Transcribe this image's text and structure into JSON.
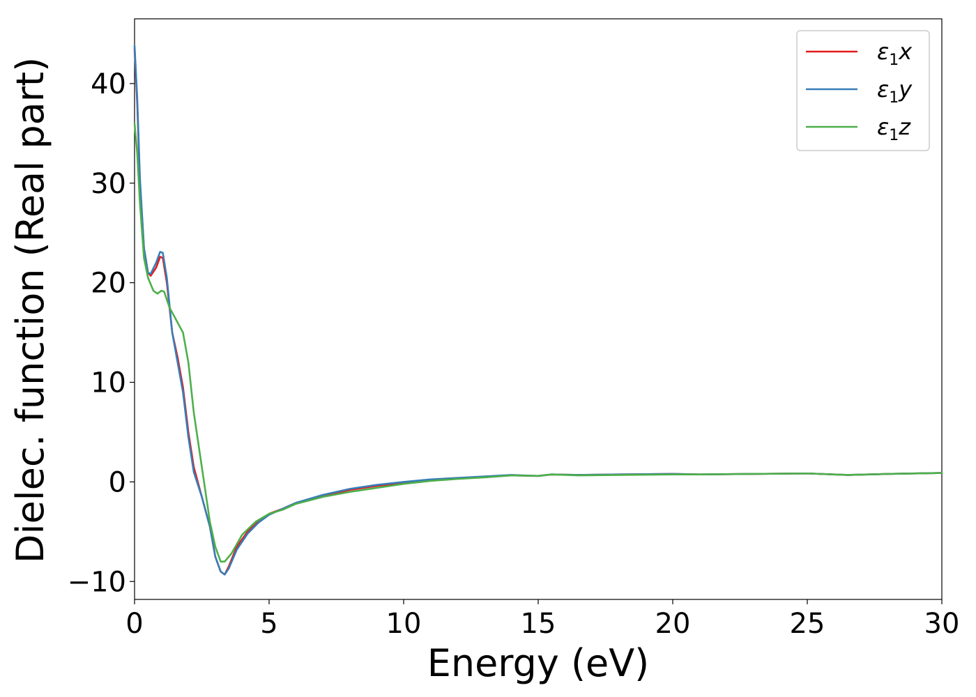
{
  "chart_data": {
    "type": "line",
    "xlabel": "Energy (eV)",
    "ylabel": "Dielec. function (Real part)",
    "xlim": [
      0,
      30
    ],
    "ylim": [
      -11.8,
      46.5
    ],
    "x_ticks": [
      0,
      5,
      10,
      15,
      20,
      25,
      30
    ],
    "x_tick_labels": [
      "0",
      "5",
      "10",
      "15",
      "20",
      "25",
      "30"
    ],
    "y_ticks": [
      -10,
      0,
      10,
      20,
      30,
      40
    ],
    "y_tick_labels": [
      "−10",
      "0",
      "10",
      "20",
      "30",
      "40"
    ],
    "grid": false,
    "legend_position": "top-right",
    "series": [
      {
        "name": "ε1x",
        "legend_base": "ε",
        "legend_sub": "1",
        "legend_suffix": "x",
        "color": "#e41a1c",
        "points": [
          [
            0.0,
            43.5
          ],
          [
            0.1,
            38.0
          ],
          [
            0.2,
            30.0
          ],
          [
            0.35,
            23.5
          ],
          [
            0.5,
            21.0
          ],
          [
            0.6,
            20.7
          ],
          [
            0.8,
            21.5
          ],
          [
            0.95,
            22.6
          ],
          [
            1.05,
            22.5
          ],
          [
            1.2,
            20.0
          ],
          [
            1.4,
            15.0
          ],
          [
            1.6,
            12.5
          ],
          [
            1.8,
            9.5
          ],
          [
            2.0,
            5.0
          ],
          [
            2.2,
            1.5
          ],
          [
            2.5,
            -1.5
          ],
          [
            2.8,
            -4.5
          ],
          [
            3.0,
            -7.5
          ],
          [
            3.2,
            -9.0
          ],
          [
            3.35,
            -9.3
          ],
          [
            3.5,
            -8.5
          ],
          [
            3.8,
            -6.5
          ],
          [
            4.2,
            -5.0
          ],
          [
            4.6,
            -4.0
          ],
          [
            5.0,
            -3.2
          ],
          [
            5.5,
            -2.7
          ],
          [
            6.0,
            -2.1
          ],
          [
            7.0,
            -1.4
          ],
          [
            8.0,
            -0.8
          ],
          [
            9.0,
            -0.4
          ],
          [
            10.0,
            -0.1
          ],
          [
            11.0,
            0.2
          ],
          [
            12.0,
            0.35
          ],
          [
            13.0,
            0.5
          ],
          [
            14.0,
            0.65
          ],
          [
            15.0,
            0.6
          ],
          [
            15.5,
            0.75
          ],
          [
            16.5,
            0.7
          ],
          [
            18.0,
            0.75
          ],
          [
            20.0,
            0.8
          ],
          [
            21.0,
            0.75
          ],
          [
            23.0,
            0.8
          ],
          [
            25.0,
            0.85
          ],
          [
            26.5,
            0.7
          ],
          [
            28.0,
            0.8
          ],
          [
            30.0,
            0.9
          ]
        ]
      },
      {
        "name": "ε1y",
        "legend_base": "ε",
        "legend_sub": "1",
        "legend_suffix": "y",
        "color": "#377eb8",
        "points": [
          [
            0.0,
            43.8
          ],
          [
            0.1,
            38.5
          ],
          [
            0.2,
            30.5
          ],
          [
            0.35,
            23.5
          ],
          [
            0.5,
            21.0
          ],
          [
            0.6,
            20.9
          ],
          [
            0.8,
            22.0
          ],
          [
            0.95,
            23.1
          ],
          [
            1.05,
            23.0
          ],
          [
            1.2,
            20.5
          ],
          [
            1.4,
            15.0
          ],
          [
            1.6,
            12.0
          ],
          [
            1.8,
            9.0
          ],
          [
            2.0,
            4.5
          ],
          [
            2.2,
            1.0
          ],
          [
            2.5,
            -1.5
          ],
          [
            2.8,
            -4.5
          ],
          [
            3.0,
            -7.5
          ],
          [
            3.2,
            -9.0
          ],
          [
            3.35,
            -9.3
          ],
          [
            3.5,
            -8.7
          ],
          [
            3.8,
            -6.8
          ],
          [
            4.2,
            -5.2
          ],
          [
            4.6,
            -4.1
          ],
          [
            5.0,
            -3.3
          ],
          [
            5.5,
            -2.7
          ],
          [
            6.0,
            -2.1
          ],
          [
            7.0,
            -1.3
          ],
          [
            8.0,
            -0.7
          ],
          [
            9.0,
            -0.3
          ],
          [
            10.0,
            0.0
          ],
          [
            11.0,
            0.25
          ],
          [
            12.0,
            0.4
          ],
          [
            13.0,
            0.55
          ],
          [
            14.0,
            0.7
          ],
          [
            15.0,
            0.6
          ],
          [
            15.5,
            0.75
          ],
          [
            16.5,
            0.7
          ],
          [
            18.0,
            0.75
          ],
          [
            20.0,
            0.8
          ],
          [
            21.0,
            0.75
          ],
          [
            23.0,
            0.8
          ],
          [
            25.0,
            0.85
          ],
          [
            26.5,
            0.7
          ],
          [
            28.0,
            0.8
          ],
          [
            30.0,
            0.9
          ]
        ]
      },
      {
        "name": "ε1z",
        "legend_base": "ε",
        "legend_sub": "1",
        "legend_suffix": "z",
        "color": "#4daf4a",
        "points": [
          [
            0.0,
            36.0
          ],
          [
            0.1,
            33.0
          ],
          [
            0.2,
            28.0
          ],
          [
            0.35,
            22.5
          ],
          [
            0.5,
            20.5
          ],
          [
            0.7,
            19.2
          ],
          [
            0.85,
            18.9
          ],
          [
            1.0,
            19.2
          ],
          [
            1.1,
            19.1
          ],
          [
            1.3,
            17.5
          ],
          [
            1.5,
            16.5
          ],
          [
            1.8,
            15.0
          ],
          [
            2.0,
            12.0
          ],
          [
            2.2,
            7.0
          ],
          [
            2.5,
            1.5
          ],
          [
            2.8,
            -4.0
          ],
          [
            3.0,
            -6.5
          ],
          [
            3.2,
            -8.0
          ],
          [
            3.35,
            -8.0
          ],
          [
            3.6,
            -7.2
          ],
          [
            4.0,
            -5.3
          ],
          [
            4.5,
            -4.0
          ],
          [
            5.0,
            -3.2
          ],
          [
            5.5,
            -2.8
          ],
          [
            6.0,
            -2.2
          ],
          [
            7.0,
            -1.5
          ],
          [
            8.0,
            -1.0
          ],
          [
            9.0,
            -0.6
          ],
          [
            10.0,
            -0.2
          ],
          [
            11.0,
            0.1
          ],
          [
            12.0,
            0.3
          ],
          [
            13.0,
            0.45
          ],
          [
            14.0,
            0.65
          ],
          [
            15.0,
            0.6
          ],
          [
            15.5,
            0.75
          ],
          [
            16.5,
            0.65
          ],
          [
            18.0,
            0.7
          ],
          [
            20.0,
            0.75
          ],
          [
            21.0,
            0.75
          ],
          [
            23.0,
            0.8
          ],
          [
            25.0,
            0.85
          ],
          [
            26.5,
            0.7
          ],
          [
            28.0,
            0.8
          ],
          [
            30.0,
            0.9
          ]
        ]
      }
    ]
  }
}
